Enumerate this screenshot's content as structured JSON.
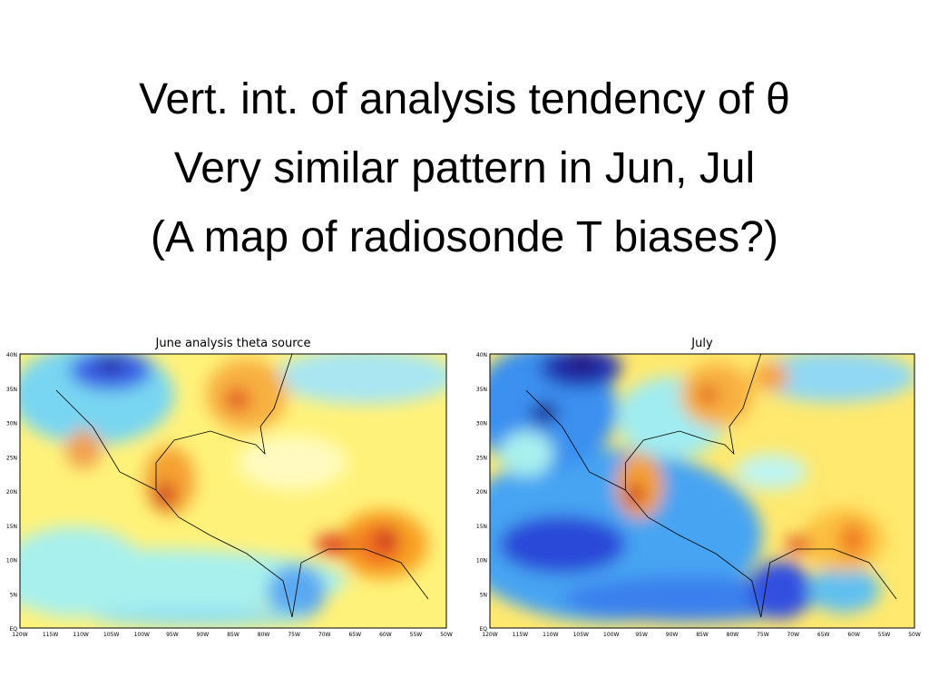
{
  "slide": {
    "title_lines": [
      "Vert. int. of analysis tendency of θ",
      "Very similar pattern in Jun, Jul",
      "(A map of radiosonde T biases?)"
    ]
  },
  "maps": [
    {
      "title": "June analysis theta source",
      "y_labels": [
        "40N",
        "35N",
        "30N",
        "25N",
        "20N",
        "15N",
        "10N",
        "5N",
        "EQ"
      ],
      "x_labels": [
        "120W",
        "115W",
        "110W",
        "105W",
        "100W",
        "95W",
        "90W",
        "85W",
        "80W",
        "75W",
        "70W",
        "65W",
        "60W",
        "55W",
        "50W"
      ]
    },
    {
      "title": "July",
      "y_labels": [
        "40N",
        "35N",
        "30N",
        "25N",
        "20N",
        "15N",
        "10N",
        "5N",
        "EQ"
      ],
      "x_labels": [
        "120W",
        "115W",
        "110W",
        "105W",
        "100W",
        "95W",
        "90W",
        "85W",
        "80W",
        "75W",
        "70W",
        "65W",
        "60W",
        "55W",
        "50W"
      ]
    }
  ]
}
